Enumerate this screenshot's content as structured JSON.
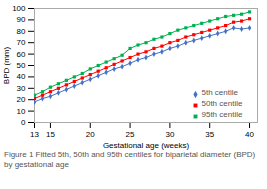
{
  "chart_data": {
    "type": "line",
    "xlabel": "Gestational age (weeks)",
    "ylabel": "BPD (mm)",
    "caption": "Figure 1 Fitted 5th, 50th and 95th centiles for biparietal diameter (BPD) by gestational age",
    "x": [
      13,
      14,
      15,
      16,
      17,
      18,
      19,
      20,
      21,
      22,
      23,
      24,
      25,
      26,
      27,
      28,
      29,
      30,
      31,
      32,
      33,
      34,
      35,
      36,
      37,
      38,
      39,
      40
    ],
    "series": [
      {
        "name": "5th centile",
        "color": "#4472c4",
        "marker": "diamond",
        "values": [
          18,
          21,
          23,
          26,
          29,
          32,
          35,
          38,
          41,
          44,
          47,
          49,
          52,
          55,
          57,
          60,
          62,
          65,
          67,
          70,
          72,
          74,
          76,
          78,
          80,
          83,
          82,
          83
        ]
      },
      {
        "name": "50th centile",
        "color": "#ff0000",
        "marker": "square",
        "values": [
          21,
          24,
          27,
          30,
          33,
          36,
          39,
          42,
          45,
          48,
          51,
          54,
          57,
          60,
          62,
          65,
          67,
          70,
          72,
          75,
          77,
          79,
          81,
          83,
          85,
          88,
          89,
          91
        ]
      },
      {
        "name": "95th centile",
        "color": "#00b050",
        "marker": "square",
        "values": [
          24,
          27,
          31,
          34,
          37,
          40,
          43,
          47,
          50,
          53,
          56,
          59,
          65,
          68,
          70,
          73,
          75,
          78,
          81,
          83,
          85,
          87,
          89,
          91,
          93,
          94,
          95,
          97
        ]
      }
    ],
    "xlim": [
      13,
      41
    ],
    "ylim": [
      0,
      100
    ],
    "xticks": [
      13,
      15,
      20,
      25,
      30,
      35,
      40
    ],
    "yticks": [
      0,
      10,
      20,
      30,
      40,
      50,
      60,
      70,
      80,
      90,
      100
    ],
    "legend": "right",
    "grid": false
  }
}
